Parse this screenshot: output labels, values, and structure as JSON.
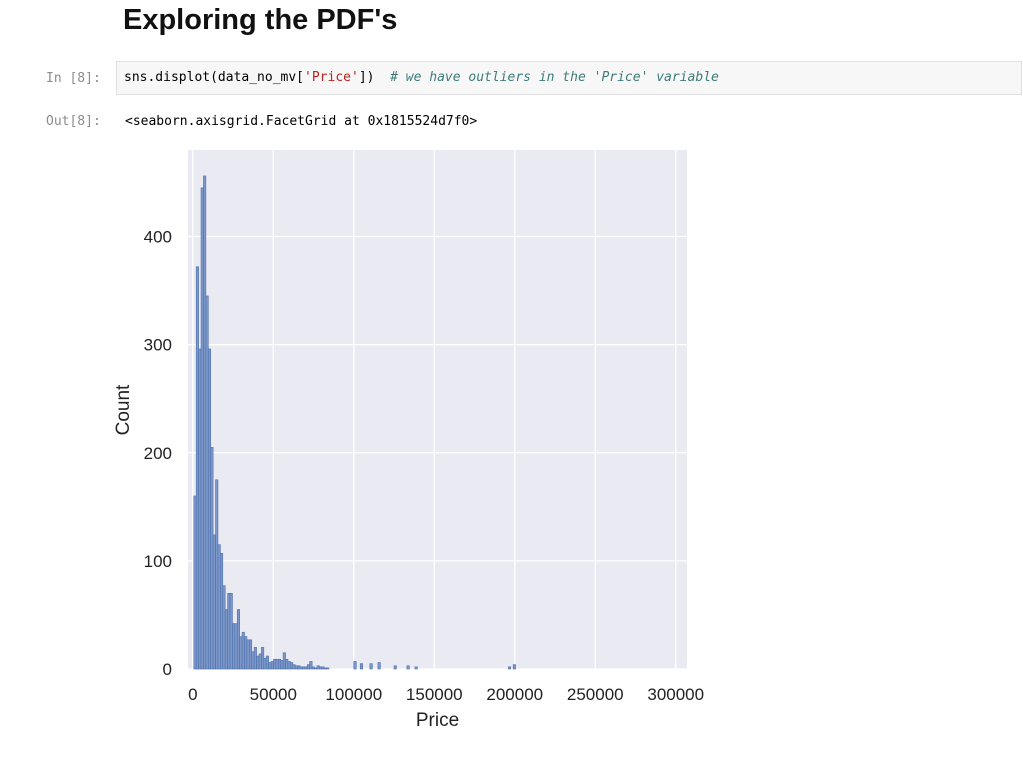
{
  "notebook": {
    "heading": "Exploring the PDF's",
    "cell_in_prompt": "In [8]:",
    "code_prefix": "sns.displot(data_no_mv[",
    "code_string": "'Price'",
    "code_suffix": "])  ",
    "code_comment": "# we have outliers in the 'Price' variable",
    "cell_out_prompt": "Out[8]:",
    "output_text": "<seaborn.axisgrid.FacetGrid at 0x1815524d7f0>"
  },
  "chart_data": {
    "type": "bar",
    "title": "",
    "xlabel": "Price",
    "ylabel": "Count",
    "xlim": [
      -3000,
      307000
    ],
    "ylim": [
      0,
      480
    ],
    "xticks": [
      0,
      50000,
      100000,
      150000,
      200000,
      250000,
      300000
    ],
    "yticks": [
      0,
      100,
      200,
      300,
      400
    ],
    "grid": true,
    "bin_start": 600,
    "bin_width": 1500,
    "counts": [
      160,
      372,
      296,
      445,
      456,
      345,
      296,
      205,
      124,
      175,
      115,
      107,
      77,
      55,
      70,
      70,
      42,
      42,
      55,
      30,
      34,
      30,
      27,
      27,
      16,
      20,
      12,
      14,
      20,
      10,
      12,
      6,
      7,
      9,
      9,
      9,
      8,
      15,
      9,
      7,
      6,
      4,
      3,
      3,
      2,
      2,
      2,
      4,
      7,
      2,
      1,
      3,
      2,
      2,
      1,
      1,
      0,
      0,
      0,
      0,
      0,
      0,
      0,
      0,
      0,
      0,
      0,
      0,
      0,
      0,
      0,
      0,
      0,
      0,
      0,
      0,
      0,
      0,
      0,
      0,
      0,
      0,
      0,
      0,
      0,
      0,
      0,
      0,
      0,
      0,
      0,
      0,
      0,
      0,
      0,
      0,
      0,
      0,
      0,
      0,
      0,
      0,
      0,
      0,
      0,
      0,
      0,
      0,
      0,
      0,
      0,
      0,
      0,
      0,
      0,
      0,
      0,
      0,
      0,
      0,
      0,
      0,
      0,
      0,
      0,
      0,
      0,
      0,
      0,
      0,
      0,
      0,
      0,
      0,
      0,
      0,
      0
    ],
    "sparse_bars": [
      {
        "x": 100000,
        "count": 7
      },
      {
        "x": 104000,
        "count": 5
      },
      {
        "x": 110000,
        "count": 5
      },
      {
        "x": 115000,
        "count": 6
      },
      {
        "x": 125000,
        "count": 3
      },
      {
        "x": 133000,
        "count": 3
      },
      {
        "x": 138000,
        "count": 2
      },
      {
        "x": 196000,
        "count": 2
      },
      {
        "x": 199000,
        "count": 4
      }
    ],
    "colors": {
      "bar_fill": "#7d98c8",
      "bar_edge": "#4c6fad",
      "plot_bg": "#eaeaf2",
      "grid": "#ffffff"
    }
  }
}
